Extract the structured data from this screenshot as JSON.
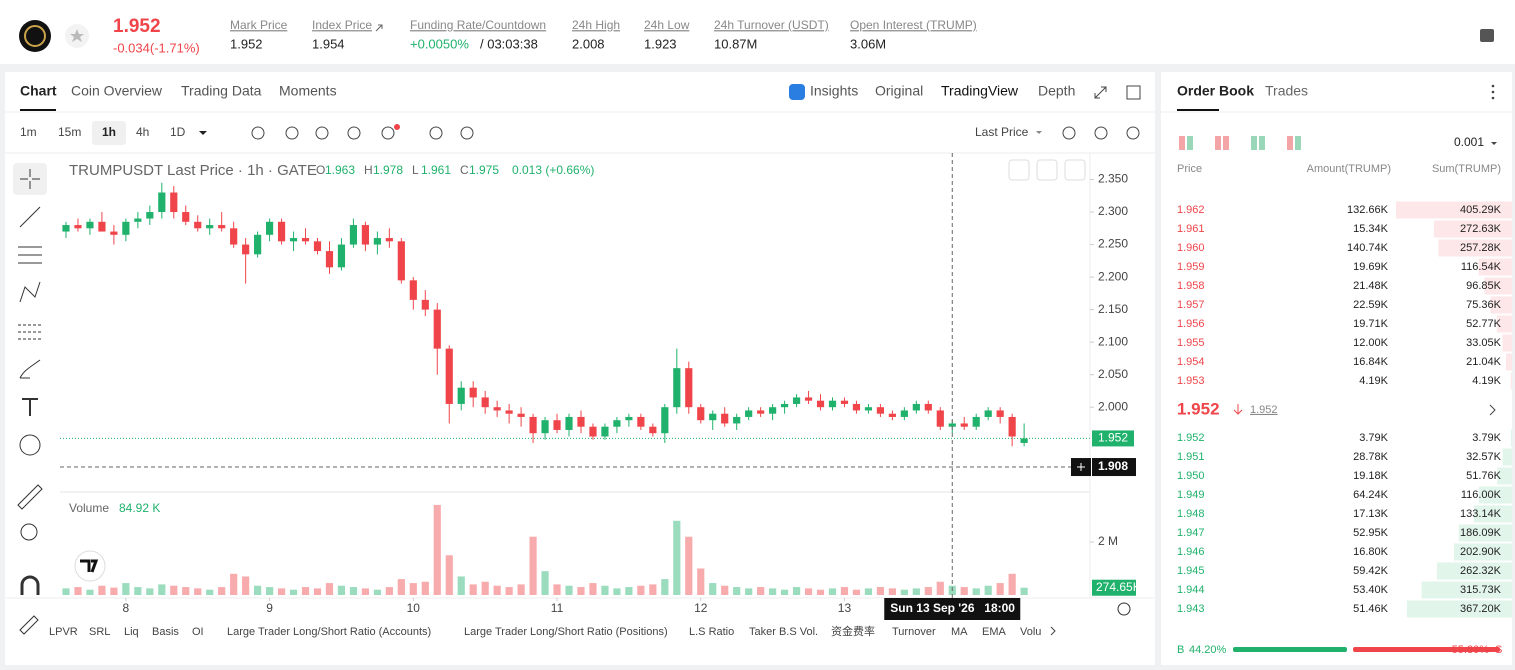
{
  "header": {
    "price": "1.952",
    "change": "-0.034(-1.71%)",
    "stats": [
      {
        "label": "Mark Price",
        "value": "1.952"
      },
      {
        "label": "Index Price",
        "value": "1.954"
      },
      {
        "label": "Funding Rate/Countdown",
        "value": "+0.0050%",
        "extra": "/ 03:03:38"
      },
      {
        "label": "24h High",
        "value": "2.008"
      },
      {
        "label": "24h Low",
        "value": "1.923"
      },
      {
        "label": "24h Turnover (USDT)",
        "value": "10.87M"
      },
      {
        "label": "Open Interest (TRUMP)",
        "value": "3.06M"
      }
    ]
  },
  "tabs": [
    "Chart",
    "Coin Overview",
    "Trading Data",
    "Moments"
  ],
  "view_tabs": [
    "Insights",
    "Original",
    "TradingView",
    "Depth"
  ],
  "intervals": [
    "1m",
    "15m",
    "1h",
    "4h",
    "1D"
  ],
  "price_source": "Last Price",
  "legend": {
    "symbol": "TRUMPUSDT Last Price · 1h · GATE",
    "ohlc": [
      {
        "label": "O",
        "value": "1.963"
      },
      {
        "label": "H",
        "value": "1.978"
      },
      {
        "label": "L",
        "value": "1.961"
      },
      {
        "label": "C",
        "value": "1.975"
      }
    ],
    "change": "0.013 (+0.66%)"
  },
  "volume_legend": {
    "label": "Volume",
    "value": "84.92 K"
  },
  "chart_data": {
    "type": "candlestick",
    "candles": [
      [
        2.27,
        2.285,
        2.26,
        2.28
      ],
      [
        2.28,
        2.29,
        2.27,
        2.275
      ],
      [
        2.275,
        2.29,
        2.265,
        2.285
      ],
      [
        2.285,
        2.3,
        2.27,
        2.27
      ],
      [
        2.27,
        2.28,
        2.25,
        2.265
      ],
      [
        2.265,
        2.29,
        2.255,
        2.285
      ],
      [
        2.285,
        2.3,
        2.275,
        2.29
      ],
      [
        2.29,
        2.31,
        2.28,
        2.3
      ],
      [
        2.3,
        2.345,
        2.29,
        2.33
      ],
      [
        2.33,
        2.34,
        2.29,
        2.3
      ],
      [
        2.3,
        2.31,
        2.28,
        2.285
      ],
      [
        2.285,
        2.295,
        2.27,
        2.275
      ],
      [
        2.275,
        2.29,
        2.265,
        2.28
      ],
      [
        2.28,
        2.3,
        2.27,
        2.275
      ],
      [
        2.275,
        2.285,
        2.245,
        2.25
      ],
      [
        2.25,
        2.26,
        2.19,
        2.235
      ],
      [
        2.235,
        2.27,
        2.23,
        2.265
      ],
      [
        2.265,
        2.29,
        2.255,
        2.285
      ],
      [
        2.285,
        2.29,
        2.25,
        2.255
      ],
      [
        2.255,
        2.27,
        2.24,
        2.26
      ],
      [
        2.26,
        2.275,
        2.25,
        2.255
      ],
      [
        2.255,
        2.26,
        2.235,
        2.24
      ],
      [
        2.24,
        2.255,
        2.205,
        2.215
      ],
      [
        2.215,
        2.26,
        2.21,
        2.25
      ],
      [
        2.25,
        2.29,
        2.245,
        2.28
      ],
      [
        2.28,
        2.285,
        2.24,
        2.25
      ],
      [
        2.25,
        2.27,
        2.235,
        2.26
      ],
      [
        2.26,
        2.275,
        2.245,
        2.255
      ],
      [
        2.255,
        2.26,
        2.19,
        2.195
      ],
      [
        2.195,
        2.2,
        2.15,
        2.165
      ],
      [
        2.165,
        2.18,
        2.14,
        2.15
      ],
      [
        2.15,
        2.16,
        2.05,
        2.09
      ],
      [
        2.09,
        2.095,
        1.975,
        2.005
      ],
      [
        2.005,
        2.04,
        1.995,
        2.03
      ],
      [
        2.03,
        2.04,
        2.0,
        2.015
      ],
      [
        2.015,
        2.025,
        1.99,
        2.0
      ],
      [
        2.0,
        2.01,
        1.985,
        1.995
      ],
      [
        1.995,
        2.005,
        1.975,
        1.99
      ],
      [
        1.99,
        2.0,
        1.97,
        1.985
      ],
      [
        1.985,
        1.99,
        1.945,
        1.96
      ],
      [
        1.96,
        1.985,
        1.95,
        1.98
      ],
      [
        1.98,
        1.99,
        1.96,
        1.965
      ],
      [
        1.965,
        1.99,
        1.955,
        1.985
      ],
      [
        1.985,
        1.995,
        1.96,
        1.97
      ],
      [
        1.97,
        1.975,
        1.95,
        1.955
      ],
      [
        1.955,
        1.975,
        1.95,
        1.97
      ],
      [
        1.97,
        1.985,
        1.96,
        1.98
      ],
      [
        1.98,
        1.99,
        1.97,
        1.985
      ],
      [
        1.985,
        1.99,
        1.965,
        1.97
      ],
      [
        1.97,
        1.975,
        1.955,
        1.96
      ],
      [
        1.96,
        2.005,
        1.945,
        2.0
      ],
      [
        2.0,
        2.09,
        1.99,
        2.06
      ],
      [
        2.06,
        2.07,
        1.99,
        2.0
      ],
      [
        2.0,
        2.005,
        1.975,
        1.98
      ],
      [
        1.98,
        1.995,
        1.965,
        1.99
      ],
      [
        1.99,
        2.0,
        1.97,
        1.975
      ],
      [
        1.975,
        1.99,
        1.965,
        1.985
      ],
      [
        1.985,
        2.0,
        1.98,
        1.995
      ],
      [
        1.995,
        2.0,
        1.985,
        1.99
      ],
      [
        1.99,
        2.005,
        1.98,
        2.0
      ],
      [
        2.0,
        2.01,
        1.99,
        2.005
      ],
      [
        2.005,
        2.02,
        2.0,
        2.015
      ],
      [
        2.015,
        2.025,
        2.005,
        2.01
      ],
      [
        2.01,
        2.02,
        1.995,
        2.0
      ],
      [
        2.0,
        2.015,
        1.995,
        2.01
      ],
      [
        2.01,
        2.015,
        2.0,
        2.005
      ],
      [
        2.005,
        2.01,
        1.99,
        1.995
      ],
      [
        1.995,
        2.005,
        1.99,
        2.0
      ],
      [
        2.0,
        2.005,
        1.985,
        1.99
      ],
      [
        1.99,
        1.995,
        1.98,
        1.985
      ],
      [
        1.985,
        2.0,
        1.98,
        1.995
      ],
      [
        1.995,
        2.01,
        1.99,
        2.005
      ],
      [
        2.005,
        2.01,
        1.99,
        1.995
      ],
      [
        1.995,
        2.0,
        1.965,
        1.97
      ],
      [
        1.97,
        1.98,
        1.96,
        1.975
      ],
      [
        1.975,
        1.985,
        1.965,
        1.97
      ],
      [
        1.97,
        1.99,
        1.965,
        1.985
      ],
      [
        1.985,
        2.0,
        1.98,
        1.995
      ],
      [
        1.995,
        2.0,
        1.975,
        1.985
      ],
      [
        1.985,
        1.99,
        1.94,
        1.955
      ],
      [
        1.945,
        1.975,
        1.94,
        1.952
      ]
    ],
    "volumes": [
      250000,
      300000,
      200000,
      350000,
      280000,
      450000,
      300000,
      250000,
      400000,
      350000,
      300000,
      250000,
      200000,
      300000,
      800000,
      700000,
      350000,
      300000,
      250000,
      200000,
      300000,
      250000,
      450000,
      350000,
      300000,
      250000,
      200000,
      300000,
      600000,
      450000,
      500000,
      3400000,
      1500000,
      700000,
      400000,
      500000,
      350000,
      300000,
      400000,
      2200000,
      900000,
      400000,
      350000,
      300000,
      450000,
      350000,
      250000,
      300000,
      350000,
      400000,
      600000,
      2800000,
      2200000,
      1000000,
      450000,
      350000,
      300000,
      250000,
      300000,
      250000,
      200000,
      300000,
      250000,
      200000,
      250000,
      300000,
      200000,
      250000,
      300000,
      250000,
      200000,
      250000,
      300000,
      500000,
      350000,
      300000,
      250000,
      350000,
      450000,
      800000,
      274650
    ],
    "ylim": [
      1.885,
      2.38
    ],
    "yticks": [
      {
        "value": 2.35,
        "label": "2.350"
      },
      {
        "value": 2.3,
        "label": "2.300"
      },
      {
        "value": 2.25,
        "label": "2.250"
      },
      {
        "value": 2.2,
        "label": "2.200"
      },
      {
        "value": 2.15,
        "label": "2.150"
      },
      {
        "value": 2.1,
        "label": "2.100"
      },
      {
        "value": 2.05,
        "label": "2.050"
      },
      {
        "value": 2.0,
        "label": "2.000"
      }
    ],
    "xticks": [
      {
        "value": 5,
        "label": "8"
      },
      {
        "value": 17,
        "label": "9"
      },
      {
        "value": 29,
        "label": "10"
      },
      {
        "value": 41,
        "label": "11"
      },
      {
        "value": 53,
        "label": "12"
      },
      {
        "value": 65,
        "label": "13"
      }
    ],
    "xlim": [
      -0.5,
      85.5
    ],
    "vylim": [
      0,
      3585000
    ],
    "vyticks": [
      {
        "value": 2000000,
        "label": "2 M"
      }
    ],
    "last_price": {
      "value": 1.952,
      "label": "1.952"
    },
    "crosshair_price": {
      "value": 1.908,
      "label": "1.908"
    },
    "crosshair_x": 74,
    "crosshair_date": "Sun 13 Sep '26",
    "crosshair_time": "18:00",
    "last_volume": {
      "value": 274650,
      "label": "274.65K"
    },
    "up_color": "#20b26c",
    "down_color": "#ef454a"
  },
  "indicators": [
    "LPVR",
    "SRL",
    "Liq",
    "Basis",
    "OI",
    "Large Trader Long/Short Ratio (Accounts)",
    "Large Trader Long/Short Ratio (Positions)",
    "L.S Ratio",
    "Taker B.S Vol.",
    "资金费率",
    "Turnover",
    "MA",
    "EMA",
    "Volu"
  ],
  "order_book": {
    "tabs": [
      "Order Book",
      "Trades"
    ],
    "precision": "0.001",
    "headers": [
      "Price",
      "Amount(TRUMP)",
      "Sum(TRUMP)"
    ],
    "asks": [
      {
        "price": "1.962",
        "amount": "132.66K",
        "sum": {
          "value": 405290,
          "label": "405.29K"
        }
      },
      {
        "price": "1.961",
        "amount": "15.34K",
        "sum": {
          "value": 272630,
          "label": "272.63K"
        }
      },
      {
        "price": "1.960",
        "amount": "140.74K",
        "sum": {
          "value": 257280,
          "label": "257.28K"
        }
      },
      {
        "price": "1.959",
        "amount": "19.69K",
        "sum": {
          "value": 116540,
          "label": "116.54K"
        }
      },
      {
        "price": "1.958",
        "amount": "21.48K",
        "sum": {
          "value": 96850,
          "label": "96.85K"
        }
      },
      {
        "price": "1.957",
        "amount": "22.59K",
        "sum": {
          "value": 75360,
          "label": "75.36K"
        }
      },
      {
        "price": "1.956",
        "amount": "19.71K",
        "sum": {
          "value": 52770,
          "label": "52.77K"
        }
      },
      {
        "price": "1.955",
        "amount": "12.00K",
        "sum": {
          "value": 33050,
          "label": "33.05K"
        }
      },
      {
        "price": "1.954",
        "amount": "16.84K",
        "sum": {
          "value": 21040,
          "label": "21.04K"
        }
      },
      {
        "price": "1.953",
        "amount": "4.19K",
        "sum": {
          "value": 4190,
          "label": "4.19K"
        }
      }
    ],
    "mid": {
      "price": "1.952",
      "mark": "1.952"
    },
    "bids": [
      {
        "price": "1.952",
        "amount": "3.79K",
        "sum": {
          "value": 3790,
          "label": "3.79K"
        }
      },
      {
        "price": "1.951",
        "amount": "28.78K",
        "sum": {
          "value": 32570,
          "label": "32.57K"
        }
      },
      {
        "price": "1.950",
        "amount": "19.18K",
        "sum": {
          "value": 51760,
          "label": "51.76K"
        }
      },
      {
        "price": "1.949",
        "amount": "64.24K",
        "sum": {
          "value": 116000,
          "label": "116.00K"
        }
      },
      {
        "price": "1.948",
        "amount": "17.13K",
        "sum": {
          "value": 133140,
          "label": "133.14K"
        }
      },
      {
        "price": "1.947",
        "amount": "52.95K",
        "sum": {
          "value": 186090,
          "label": "186.09K"
        }
      },
      {
        "price": "1.946",
        "amount": "16.80K",
        "sum": {
          "value": 202900,
          "label": "202.90K"
        }
      },
      {
        "price": "1.945",
        "amount": "59.42K",
        "sum": {
          "value": 262320,
          "label": "262.32K"
        }
      },
      {
        "price": "1.944",
        "amount": "53.40K",
        "sum": {
          "value": 315730,
          "label": "315.73K"
        }
      },
      {
        "price": "1.943",
        "amount": "51.46K",
        "sum": {
          "value": 367200,
          "label": "367.20K"
        }
      }
    ],
    "ratio": {
      "buy_key": "B",
      "buy": {
        "value": 44.2,
        "label": "44.20%"
      },
      "sell_key": "S",
      "sell": {
        "value": 55.8,
        "label": "55.80%"
      }
    }
  }
}
